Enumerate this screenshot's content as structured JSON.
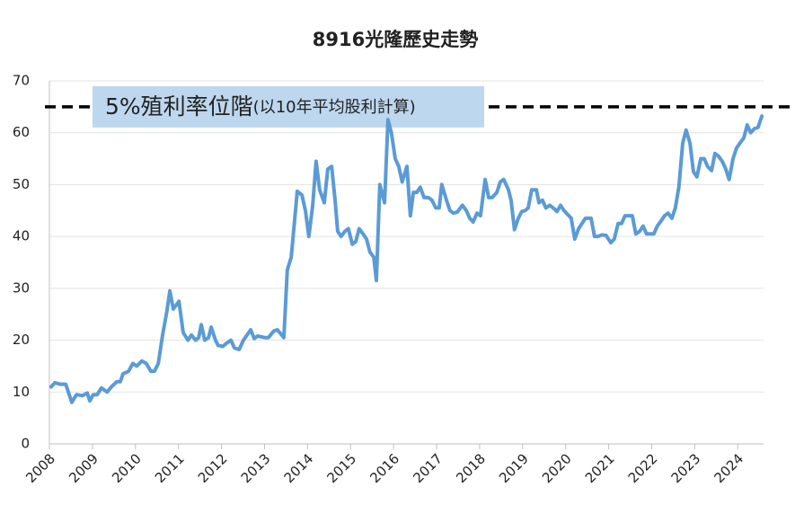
{
  "chart_data": {
    "type": "line",
    "title": "8916光隆歷史走勢",
    "annotation": {
      "text": "5%殖利率位階",
      "note": "(以10年平均股利計算)",
      "value": 65
    },
    "x": [
      2008.04,
      2008.13,
      2008.25,
      2008.38,
      2008.44,
      2008.52,
      2008.63,
      2008.77,
      2008.88,
      2008.94,
      2009.02,
      2009.11,
      2009.21,
      2009.34,
      2009.44,
      2009.57,
      2009.65,
      2009.71,
      2009.84,
      2009.94,
      2010.03,
      2010.15,
      2010.25,
      2010.36,
      2010.44,
      2010.53,
      2010.63,
      2010.73,
      2010.8,
      2010.88,
      2011.01,
      2011.11,
      2011.22,
      2011.3,
      2011.4,
      2011.47,
      2011.53,
      2011.61,
      2011.7,
      2011.76,
      2011.86,
      2011.92,
      2012.03,
      2012.13,
      2012.22,
      2012.3,
      2012.41,
      2012.51,
      2012.68,
      2012.76,
      2012.84,
      2013.01,
      2013.09,
      2013.22,
      2013.3,
      2013.45,
      2013.53,
      2013.62,
      2013.76,
      2013.87,
      2013.95,
      2014.03,
      2014.12,
      2014.2,
      2014.28,
      2014.39,
      2014.47,
      2014.56,
      2014.64,
      2014.7,
      2014.78,
      2014.87,
      2014.95,
      2015.04,
      2015.12,
      2015.2,
      2015.29,
      2015.37,
      2015.45,
      2015.54,
      2015.6,
      2015.68,
      2015.79,
      2015.87,
      2015.95,
      2016.04,
      2016.12,
      2016.2,
      2016.31,
      2016.39,
      2016.46,
      2016.54,
      2016.62,
      2016.71,
      2016.81,
      2016.89,
      2016.98,
      2017.06,
      2017.12,
      2017.23,
      2017.31,
      2017.39,
      2017.48,
      2017.6,
      2017.69,
      2017.77,
      2017.85,
      2017.94,
      2018.02,
      2018.13,
      2018.21,
      2018.29,
      2018.4,
      2018.48,
      2018.56,
      2018.67,
      2018.73,
      2018.81,
      2018.9,
      2018.98,
      2019.06,
      2019.13,
      2019.21,
      2019.32,
      2019.38,
      2019.46,
      2019.54,
      2019.63,
      2019.71,
      2019.8,
      2019.88,
      2019.96,
      2020.05,
      2020.13,
      2020.21,
      2020.3,
      2020.38,
      2020.46,
      2020.59,
      2020.67,
      2020.76,
      2020.84,
      2020.94,
      2021.05,
      2021.13,
      2021.22,
      2021.3,
      2021.38,
      2021.55,
      2021.63,
      2021.72,
      2021.8,
      2021.88,
      2021.97,
      2022.05,
      2022.13,
      2022.22,
      2022.3,
      2022.38,
      2022.47,
      2022.55,
      2022.63,
      2022.72,
      2022.8,
      2022.89,
      2022.97,
      2023.05,
      2023.14,
      2023.22,
      2023.3,
      2023.39,
      2023.47,
      2023.55,
      2023.64,
      2023.72,
      2023.8,
      2023.89,
      2023.97,
      2024.05,
      2024.14,
      2024.22,
      2024.3,
      2024.39,
      2024.47,
      2024.56
    ],
    "series": [
      {
        "color": "#5b9bd5",
        "values": [
          11,
          11.8,
          11.5,
          11.5,
          10,
          8,
          9.5,
          9.3,
          9.8,
          8.3,
          9.5,
          9.5,
          10.8,
          10,
          11,
          12,
          12,
          13.5,
          14,
          15.5,
          15,
          16,
          15.5,
          14,
          14,
          15.5,
          21,
          25.5,
          29.5,
          26,
          27.5,
          21.5,
          20,
          21,
          20,
          20.5,
          23,
          20,
          20.5,
          22.5,
          20,
          19,
          18.8,
          19.5,
          20,
          18.5,
          18.2,
          20,
          22,
          20.3,
          20.8,
          20.5,
          20.5,
          21.8,
          22,
          20.5,
          33.5,
          36,
          48.7,
          48,
          45,
          40,
          46,
          54.5,
          49,
          46.5,
          53,
          53.5,
          47,
          41,
          40,
          41,
          41.5,
          38.5,
          39,
          41.5,
          40.5,
          39.5,
          37,
          36,
          31.5,
          50,
          46.5,
          62.5,
          60,
          55,
          53.5,
          50.5,
          53.5,
          44,
          48.5,
          48.5,
          49.5,
          47.5,
          47.5,
          47,
          45.5,
          45.5,
          50,
          47,
          45,
          44.5,
          44.7,
          46,
          45,
          43.5,
          42.8,
          44.5,
          44,
          51,
          47.5,
          47.5,
          48.5,
          50.5,
          51,
          49,
          47,
          41.3,
          43.5,
          44.8,
          45,
          45.5,
          49,
          49,
          46.5,
          47,
          45.5,
          46,
          45.5,
          44.8,
          46,
          45,
          44.2,
          43.5,
          39.5,
          41.5,
          42.5,
          43.5,
          43.5,
          40,
          40,
          40.3,
          40.2,
          38.8,
          39.5,
          42.5,
          42.5,
          44,
          44,
          40.5,
          41,
          42,
          40.5,
          40.5,
          40.5,
          42,
          43,
          44,
          44.5,
          43.5,
          45.5,
          49.5,
          58,
          60.5,
          58,
          52.5,
          51.5,
          55,
          55,
          53.5,
          52.7,
          56,
          55.5,
          54.5,
          53,
          51,
          55,
          57,
          58,
          59,
          61.5,
          60,
          60.8,
          61,
          63.2
        ]
      }
    ],
    "xlim": [
      2008,
      2024.6
    ],
    "xticks": [
      2008,
      2009,
      2010,
      2011,
      2012,
      2013,
      2014,
      2015,
      2016,
      2017,
      2018,
      2019,
      2020,
      2021,
      2022,
      2023,
      2024
    ],
    "ylim": [
      0,
      70
    ],
    "yticks": [
      0,
      10,
      20,
      30,
      40,
      50,
      60,
      70
    ],
    "grid": true
  }
}
